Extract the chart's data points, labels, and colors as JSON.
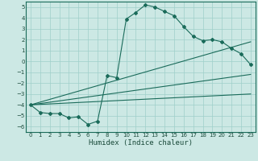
{
  "title": "",
  "xlabel": "Humidex (Indice chaleur)",
  "xlim": [
    -0.5,
    23.5
  ],
  "ylim": [
    -6.5,
    5.5
  ],
  "yticks": [
    -6,
    -5,
    -4,
    -3,
    -2,
    -1,
    0,
    1,
    2,
    3,
    4,
    5
  ],
  "xticks": [
    0,
    1,
    2,
    3,
    4,
    5,
    6,
    7,
    8,
    9,
    10,
    11,
    12,
    13,
    14,
    15,
    16,
    17,
    18,
    19,
    20,
    21,
    22,
    23
  ],
  "background_color": "#cce8e4",
  "grid_color": "#9fcfca",
  "line_color": "#1a6b5a",
  "line1_x": [
    0,
    1,
    2,
    3,
    4,
    5,
    6,
    7,
    8,
    9,
    10,
    11,
    12,
    13,
    14,
    15,
    16,
    17,
    18,
    19,
    20,
    21,
    22,
    23
  ],
  "line1_y": [
    -4.0,
    -4.7,
    -4.8,
    -4.8,
    -5.2,
    -5.1,
    -5.8,
    -5.5,
    -1.3,
    -1.5,
    3.9,
    4.5,
    5.2,
    5.0,
    4.6,
    4.2,
    3.2,
    2.3,
    1.9,
    2.0,
    1.8,
    1.2,
    0.7,
    -0.3
  ],
  "line2_x": [
    0,
    23
  ],
  "line2_y": [
    -4.0,
    1.8
  ],
  "line3_x": [
    0,
    23
  ],
  "line3_y": [
    -4.0,
    -1.2
  ],
  "line4_x": [
    0,
    23
  ],
  "line4_y": [
    -4.0,
    -3.0
  ],
  "marker_style": "D",
  "marker_size": 2.0,
  "font_color": "#1a4a3a",
  "label_fontsize": 6.5,
  "tick_fontsize": 5.0,
  "line_width": 0.8
}
